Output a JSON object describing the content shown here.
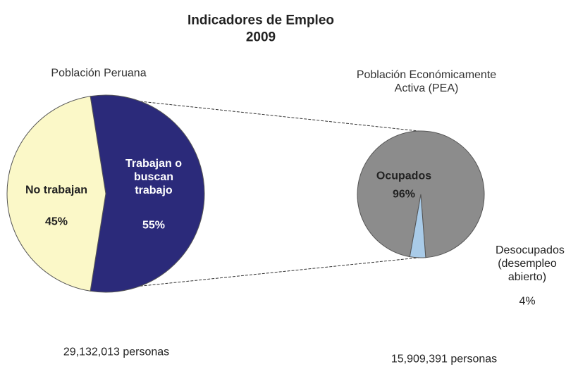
{
  "title": "Indicadores de Empleo",
  "subtitle": "2009",
  "chart_data": [
    {
      "type": "pie",
      "title": "Población Peruana",
      "categories": [
        "Trabajan o buscan trabajo",
        "No trabajan"
      ],
      "values": [
        55,
        45
      ],
      "value_labels": [
        "55%",
        "45%"
      ],
      "colors": [
        "#2b2a7a",
        "#fbf8c8"
      ],
      "note": "29,132,013 personas"
    },
    {
      "type": "pie",
      "title": "Población Económicamente Activa (PEA)",
      "categories": [
        "Ocupados",
        "Desocupados (desempleo abierto)"
      ],
      "values": [
        96,
        4
      ],
      "value_labels": [
        "96%",
        "4%"
      ],
      "colors": [
        "#8c8c8c",
        "#a9cbe8"
      ],
      "note": "15,909,391 personas"
    }
  ]
}
